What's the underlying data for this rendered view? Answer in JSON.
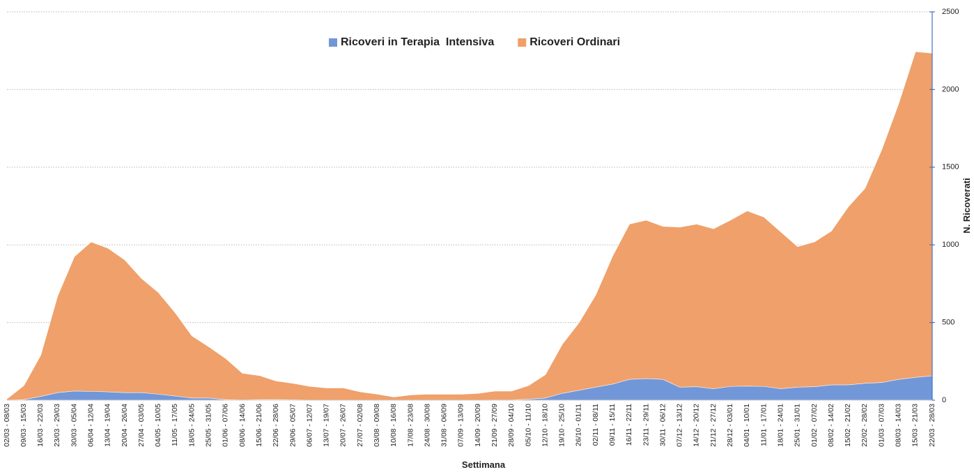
{
  "chart_data": {
    "type": "stacked_area",
    "x_label": "Settimana",
    "y_label": "N. Ricoverati",
    "categories": [
      "02/03 - 08/03",
      "09/03 - 15/03",
      "16/03 - 22/03",
      "23/03 - 29/03",
      "30/03 - 05/04",
      "06/04 - 12/04",
      "13/04 - 19/04",
      "20/04 - 26/04",
      "27/04 - 03/05",
      "04/05 - 10/05",
      "11/05 - 17/05",
      "18/05 - 24/05",
      "25/05 - 31/05",
      "01/06 - 07/06",
      "08/06 - 14/06",
      "15/06 - 21/06",
      "22/06 - 28/06",
      "29/06 - 05/07",
      "06/07 - 12/07",
      "13/07 - 19/07",
      "20/07 - 26/07",
      "27/07 - 02/08",
      "03/08 - 09/08",
      "10/08 - 16/08",
      "17/08 - 23/08",
      "24/08 - 30/08",
      "31/08 - 06/09",
      "07/09 - 13/09",
      "14/09 - 20/09",
      "21/09 - 27/09",
      "28/09 - 04/10",
      "05/10 - 11/10",
      "12/10 - 18/10",
      "19/10 - 25/10",
      "26/10 - 01/11",
      "02/11 - 08/11",
      "09/11 - 15/11",
      "16/11 - 22/11",
      "23/11 - 29/11",
      "30/11 - 06/12",
      "07/12 - 13/12",
      "14/12 - 20/12",
      "21/12 - 27/12",
      "28/12 - 03/01",
      "04/01 - 10/01",
      "11/01 - 17/01",
      "18/01 - 24/01",
      "25/01 - 31/01",
      "01/02 - 07/02",
      "08/02 - 14/02",
      "15/02 - 21/02",
      "22/02 - 28/02",
      "01/03 - 07/03",
      "08/03 - 14/03",
      "15/03 - 21/03",
      "22/03 - 28/03"
    ],
    "series": [
      {
        "name": "Ricoveri in Terapia  Intensiva",
        "color": "#7297d8",
        "values": [
          2,
          5,
          25,
          50,
          60,
          58,
          55,
          50,
          50,
          40,
          28,
          15,
          15,
          5,
          3,
          5,
          5,
          4,
          2,
          2,
          2,
          2,
          2,
          2,
          2,
          2,
          2,
          2,
          2,
          3,
          3,
          8,
          15,
          45,
          65,
          85,
          105,
          135,
          140,
          135,
          85,
          88,
          75,
          90,
          92,
          90,
          75,
          85,
          88,
          100,
          100,
          110,
          115,
          135,
          148,
          158
        ]
      },
      {
        "name": "Ricoveri Ordinari",
        "color": "#f0a06a",
        "values": [
          8,
          90,
          265,
          620,
          865,
          962,
          925,
          855,
          735,
          655,
          537,
          400,
          330,
          265,
          172,
          155,
          120,
          106,
          88,
          78,
          78,
          53,
          38,
          20,
          33,
          38,
          38,
          38,
          43,
          57,
          57,
          87,
          150,
          315,
          435,
          595,
          825,
          1000,
          1020,
          985,
          1030,
          1047,
          1030,
          1070,
          1128,
          1090,
          1010,
          905,
          932,
          990,
          1145,
          1255,
          1500,
          1775,
          2097,
          2077
        ]
      }
    ],
    "ylim": [
      0,
      2500
    ],
    "yticks": [
      0,
      500,
      1000,
      1500,
      2000,
      2500
    ],
    "grid": true,
    "legend": "top",
    "y_axis_side": "right",
    "axis_color": "#4472c4"
  }
}
